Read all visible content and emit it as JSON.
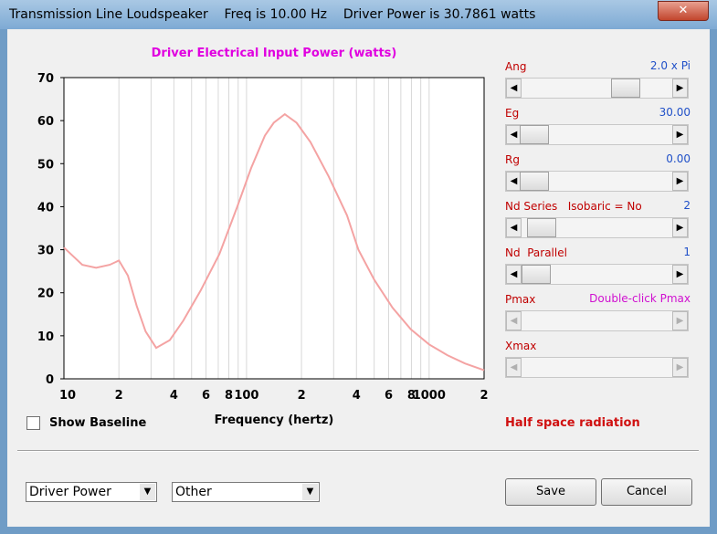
{
  "window": {
    "title": "Transmission Line Loudspeaker    Freq is 10.00 Hz    Driver Power is 30.7861 watts"
  },
  "chart_data": {
    "type": "line",
    "title": "Driver Electrical Input Power (watts)",
    "x_label": "Frequency (hertz)",
    "x": [
      10,
      12.6,
      15,
      17.8,
      20,
      22.4,
      25,
      28,
      32,
      38,
      45,
      56,
      71,
      89,
      106,
      126,
      141,
      162,
      188,
      224,
      282,
      355,
      410,
      501,
      631,
      794,
      1000,
      1259,
      1585,
      2000
    ],
    "values": [
      30.5,
      26.5,
      25.8,
      26.5,
      27.5,
      24,
      17,
      11,
      7.2,
      9,
      13.5,
      20.5,
      29,
      40,
      49,
      56.5,
      59.5,
      61.5,
      59.5,
      55,
      47,
      38,
      30,
      23,
      16.5,
      11.5,
      8,
      5.5,
      3.5,
      2
    ],
    "color": "#f4a3a3",
    "x_log": true,
    "xlim": [
      10,
      2000
    ],
    "xticks": [
      10,
      {
        "value": 20,
        "label": "2"
      },
      {
        "value": 40,
        "label": "4"
      },
      {
        "value": 60,
        "label": "6"
      },
      {
        "value": 80,
        "label": "8"
      },
      100,
      {
        "value": 200,
        "label": "2"
      },
      {
        "value": 400,
        "label": "4"
      },
      {
        "value": 600,
        "label": "6"
      },
      {
        "value": 800,
        "label": "8"
      },
      1000,
      {
        "value": 2000,
        "label": "2"
      }
    ],
    "x_minor_grid": [
      30,
      50,
      70,
      90,
      300,
      500,
      700,
      900
    ],
    "ylim": [
      0,
      70
    ],
    "yticks": [
      0,
      10,
      20,
      30,
      40,
      50,
      60,
      70
    ],
    "grid": true
  },
  "controls": [
    {
      "label": "Ang",
      "value": "2.0 x Pi"
    },
    {
      "label": "Eg",
      "value": "30.00"
    },
    {
      "label": "Rg",
      "value": "0.00"
    },
    {
      "label": "Nd Series   Isobaric = No",
      "value": "2"
    },
    {
      "label": "Nd  Parallel",
      "value": "1"
    },
    {
      "label": "Pmax",
      "value": "Double-click Pmax"
    },
    {
      "label": "Xmax"
    }
  ],
  "checkbox": "Show Baseline",
  "note": "Half space radiation",
  "dropdowns": [
    "Driver Power",
    "Other"
  ],
  "buttons": [
    "Save",
    "Cancel"
  ]
}
